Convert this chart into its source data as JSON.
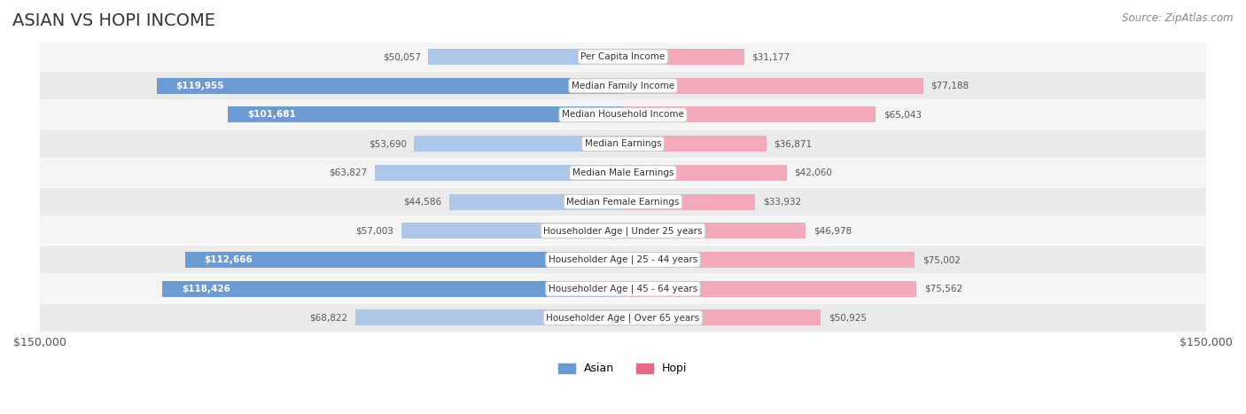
{
  "title": "ASIAN VS HOPI INCOME",
  "source": "Source: ZipAtlas.com",
  "max_value": 150000,
  "categories": [
    "Per Capita Income",
    "Median Family Income",
    "Median Household Income",
    "Median Earnings",
    "Median Male Earnings",
    "Median Female Earnings",
    "Householder Age | Under 25 years",
    "Householder Age | 25 - 44 years",
    "Householder Age | 45 - 64 years",
    "Householder Age | Over 65 years"
  ],
  "asian_values": [
    50057,
    119955,
    101681,
    53690,
    63827,
    44586,
    57003,
    112666,
    118426,
    68822
  ],
  "hopi_values": [
    31177,
    77188,
    65043,
    36871,
    42060,
    33932,
    46978,
    75002,
    75562,
    50925
  ],
  "asian_labels": [
    "$50,057",
    "$119,955",
    "$101,681",
    "$53,690",
    "$63,827",
    "$44,586",
    "$57,003",
    "$112,666",
    "$118,426",
    "$68,822"
  ],
  "hopi_labels": [
    "$31,177",
    "$77,188",
    "$65,043",
    "$36,871",
    "$42,060",
    "$33,932",
    "$46,978",
    "$75,002",
    "$75,562",
    "$50,925"
  ],
  "asian_bar_color_dark": "#6b9bd2",
  "asian_bar_color_light": "#aec6e8",
  "hopi_bar_color_dark": "#e8688a",
  "hopi_bar_color_light": "#f2aabb",
  "row_bg_color": "#f0f0f0",
  "row_bg_color_alt": "#e8e8e8",
  "label_inside_threshold": 80000,
  "title_fontsize": 14,
  "tick_label": "$150,000",
  "legend_asian_color": "#6b9bd2",
  "legend_hopi_color": "#e8688a"
}
